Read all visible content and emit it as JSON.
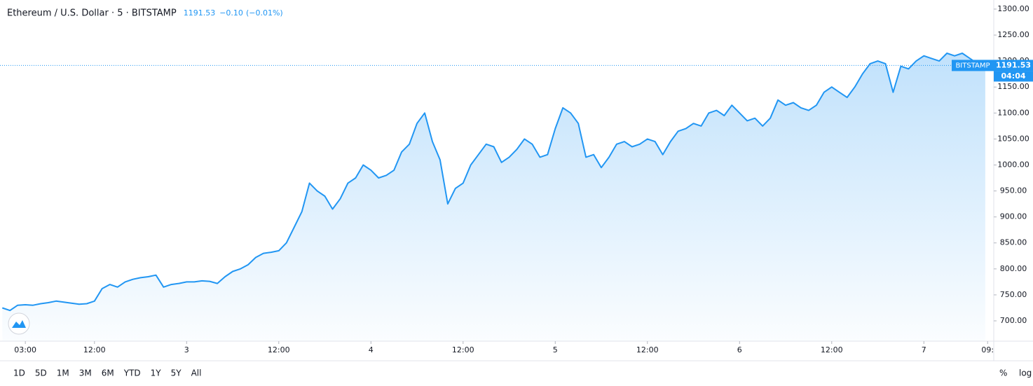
{
  "chart_data": {
    "type": "area",
    "title": "Ethereum / U.S. Dollar · 5 · BITSTAMP",
    "price_line": {
      "value": 1191.53,
      "label": "1191.53",
      "source": "BITSTAMP",
      "countdown": "04:04"
    },
    "change": "−0.10",
    "change_pct": "(−0.01%)",
    "color": "#2196f3",
    "x": [
      0,
      1,
      2,
      3,
      4,
      5,
      6,
      7,
      8,
      9,
      10,
      11,
      12,
      13,
      14,
      15,
      16,
      17,
      18,
      19,
      20,
      21,
      22,
      23,
      24,
      25,
      26,
      27,
      28,
      29,
      30,
      31,
      32,
      33,
      34,
      35,
      36,
      37,
      38,
      39,
      40,
      41,
      42,
      43,
      44,
      45,
      46,
      47,
      48,
      49,
      50,
      51,
      52,
      53,
      54,
      55,
      56,
      57,
      58,
      59,
      60,
      61,
      62,
      63,
      64,
      65,
      66,
      67,
      68,
      69,
      70,
      71,
      72,
      73,
      74,
      75,
      76,
      77,
      78,
      79,
      80,
      81,
      82,
      83,
      84,
      85,
      86,
      87,
      88,
      89,
      90,
      91,
      92,
      93,
      94,
      95,
      96,
      97,
      98,
      99,
      100,
      101,
      102,
      103,
      104,
      105,
      106,
      107,
      108,
      109,
      110,
      111,
      112,
      113,
      114,
      115,
      116,
      117,
      118,
      119,
      120,
      121,
      122,
      123,
      124,
      125,
      126,
      127,
      128
    ],
    "values": [
      725,
      720,
      730,
      731,
      730,
      733,
      735,
      738,
      736,
      734,
      732,
      733,
      738,
      762,
      770,
      765,
      775,
      780,
      783,
      785,
      788,
      765,
      770,
      772,
      775,
      775,
      777,
      776,
      772,
      785,
      795,
      800,
      808,
      822,
      830,
      832,
      835,
      850,
      880,
      910,
      965,
      950,
      940,
      915,
      935,
      965,
      975,
      1000,
      990,
      975,
      980,
      990,
      1025,
      1040,
      1080,
      1100,
      1045,
      1010,
      925,
      955,
      965,
      1000,
      1020,
      1040,
      1035,
      1005,
      1015,
      1030,
      1050,
      1040,
      1015,
      1020,
      1070,
      1110,
      1100,
      1080,
      1015,
      1020,
      995,
      1015,
      1040,
      1045,
      1035,
      1040,
      1050,
      1045,
      1020,
      1045,
      1065,
      1070,
      1080,
      1075,
      1100,
      1105,
      1095,
      1115,
      1100,
      1085,
      1090,
      1075,
      1090,
      1125,
      1115,
      1120,
      1110,
      1105,
      1115,
      1140,
      1150,
      1140,
      1130,
      1150,
      1175,
      1195,
      1200,
      1195,
      1140,
      1190,
      1185,
      1200,
      1210,
      1205,
      1200,
      1215,
      1210,
      1215,
      1205,
      1195,
      1191.53
    ],
    "xlim": [
      -0.3,
      129.1
    ],
    "xticks": [
      {
        "value": 3,
        "label": "03:00"
      },
      {
        "value": 12,
        "label": "12:00"
      },
      {
        "value": 24,
        "label": "3"
      },
      {
        "value": 36,
        "label": "12:00"
      },
      {
        "value": 48,
        "label": "4"
      },
      {
        "value": 60,
        "label": "12:00"
      },
      {
        "value": 72,
        "label": "5"
      },
      {
        "value": 84,
        "label": "12:00"
      },
      {
        "value": 96,
        "label": "6"
      },
      {
        "value": 108,
        "label": "12:00"
      },
      {
        "value": 120,
        "label": "7"
      },
      {
        "value": 128.3,
        "label": "09:"
      }
    ],
    "ylim": [
      660.9,
      1317.5
    ],
    "yticks": [
      {
        "value": 700,
        "label": "700.00"
      },
      {
        "value": 750,
        "label": "750.00"
      },
      {
        "value": 800,
        "label": "800.00"
      },
      {
        "value": 850,
        "label": "850.00"
      },
      {
        "value": 900,
        "label": "900.00"
      },
      {
        "value": 950,
        "label": "950.00"
      },
      {
        "value": 1000,
        "label": "1000.00"
      },
      {
        "value": 1050,
        "label": "1050.00"
      },
      {
        "value": 1100,
        "label": "1100.00"
      },
      {
        "value": 1150,
        "label": "1150.00"
      },
      {
        "value": 1200,
        "label": "1200.00"
      },
      {
        "value": 1250,
        "label": "1250.00"
      },
      {
        "value": 1300,
        "label": "1300.00"
      }
    ],
    "grid": false
  },
  "toolbar": {
    "ranges": [
      "1D",
      "5D",
      "1M",
      "3M",
      "6M",
      "YTD",
      "1Y",
      "5Y",
      "All"
    ],
    "scale_options": [
      "%",
      "log"
    ]
  }
}
